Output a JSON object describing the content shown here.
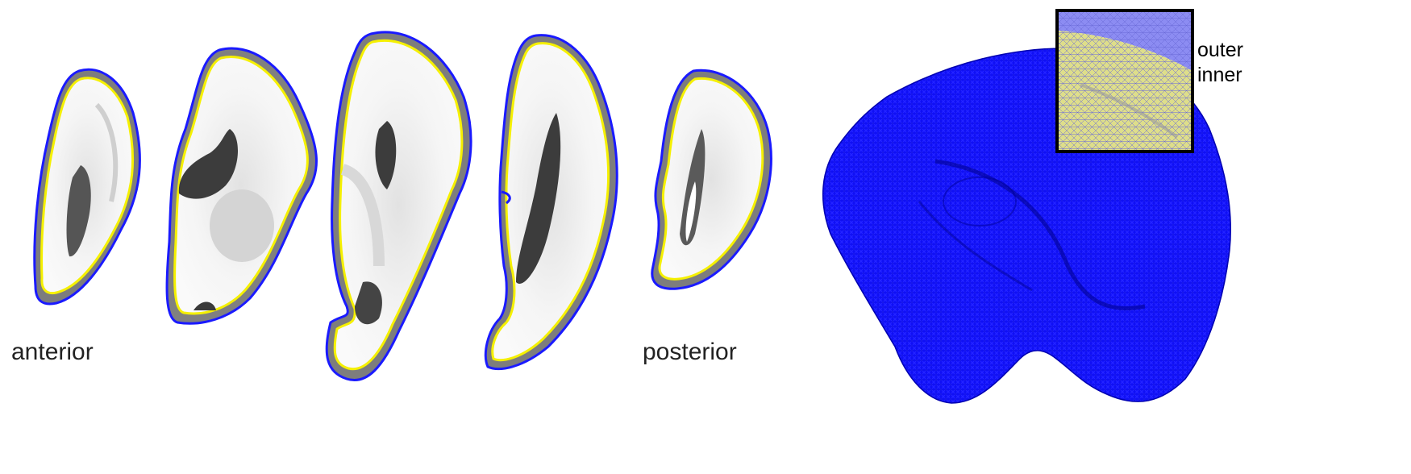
{
  "labels": {
    "anterior": "anterior",
    "posterior": "posterior",
    "outer": "outer",
    "inner": "inner"
  },
  "colors": {
    "outer_surface": "#1a1aff",
    "inner_surface": "#f5f000",
    "tissue_light": "#f3f3f3",
    "tissue_mid": "#c9c9c9",
    "tissue_dark": "#4a4a4a",
    "cortex_ring": "#8a8a8a",
    "mesh": "#0000ff",
    "inset_border": "#000000"
  },
  "icons": [
    "slice-1",
    "slice-2",
    "slice-3",
    "slice-4",
    "slice-5",
    "mesh-3d",
    "inset-zoom"
  ]
}
